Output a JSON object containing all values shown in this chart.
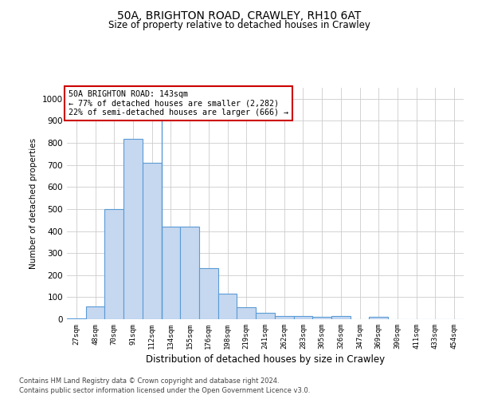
{
  "title_line1": "50A, BRIGHTON ROAD, CRAWLEY, RH10 6AT",
  "title_line2": "Size of property relative to detached houses in Crawley",
  "xlabel": "Distribution of detached houses by size in Crawley",
  "ylabel": "Number of detached properties",
  "bar_color": "#c5d8f0",
  "bar_edge_color": "#5b9bd5",
  "annotation_box_text": "50A BRIGHTON ROAD: 143sqm\n← 77% of detached houses are smaller (2,282)\n22% of semi-detached houses are larger (666) →",
  "annotation_box_color": "#ffffff",
  "annotation_box_edge_color": "#cc0000",
  "footer_line1": "Contains HM Land Registry data © Crown copyright and database right 2024.",
  "footer_line2": "Contains public sector information licensed under the Open Government Licence v3.0.",
  "bin_labels": [
    "27sqm",
    "48sqm",
    "70sqm",
    "91sqm",
    "112sqm",
    "134sqm",
    "155sqm",
    "176sqm",
    "198sqm",
    "219sqm",
    "241sqm",
    "262sqm",
    "283sqm",
    "305sqm",
    "326sqm",
    "347sqm",
    "369sqm",
    "390sqm",
    "411sqm",
    "433sqm",
    "454sqm"
  ],
  "bar_values": [
    5,
    57,
    500,
    820,
    710,
    420,
    420,
    230,
    115,
    55,
    30,
    15,
    15,
    10,
    15,
    0,
    10,
    0,
    0,
    0,
    0
  ],
  "ylim": [
    0,
    1050
  ],
  "yticks": [
    0,
    100,
    200,
    300,
    400,
    500,
    600,
    700,
    800,
    900,
    1000
  ],
  "bg_color": "#ffffff",
  "grid_color": "#cccccc",
  "vertical_line_x": 4.5
}
